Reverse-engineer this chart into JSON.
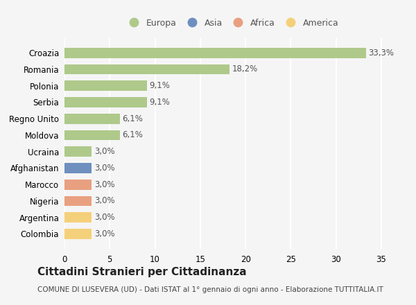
{
  "categories": [
    "Croazia",
    "Romania",
    "Polonia",
    "Serbia",
    "Regno Unito",
    "Moldova",
    "Ucraina",
    "Afghanistan",
    "Marocco",
    "Nigeria",
    "Argentina",
    "Colombia"
  ],
  "values": [
    33.3,
    18.2,
    9.1,
    9.1,
    6.1,
    6.1,
    3.0,
    3.0,
    3.0,
    3.0,
    3.0,
    3.0
  ],
  "labels": [
    "33,3%",
    "18,2%",
    "9,1%",
    "9,1%",
    "6,1%",
    "6,1%",
    "3,0%",
    "3,0%",
    "3,0%",
    "3,0%",
    "3,0%",
    "3,0%"
  ],
  "colors": [
    "#aec98a",
    "#aec98a",
    "#aec98a",
    "#aec98a",
    "#aec98a",
    "#aec98a",
    "#aec98a",
    "#6f8fbf",
    "#e8a080",
    "#e8a080",
    "#f5d07a",
    "#f5d07a"
  ],
  "legend_labels": [
    "Europa",
    "Asia",
    "Africa",
    "America"
  ],
  "legend_colors": [
    "#aec98a",
    "#6f8fbf",
    "#e8a080",
    "#f5d07a"
  ],
  "title": "Cittadini Stranieri per Cittadinanza",
  "subtitle": "COMUNE DI LUSEVERA (UD) - Dati ISTAT al 1° gennaio di ogni anno - Elaborazione TUTTITALIA.IT",
  "xlim": [
    0,
    37
  ],
  "xticks": [
    0,
    5,
    10,
    15,
    20,
    25,
    30,
    35
  ],
  "background_color": "#f5f5f5",
  "grid_color": "#ffffff",
  "bar_height": 0.62,
  "title_fontsize": 11,
  "subtitle_fontsize": 7.5,
  "label_fontsize": 8.5,
  "tick_fontsize": 8.5,
  "legend_fontsize": 9
}
